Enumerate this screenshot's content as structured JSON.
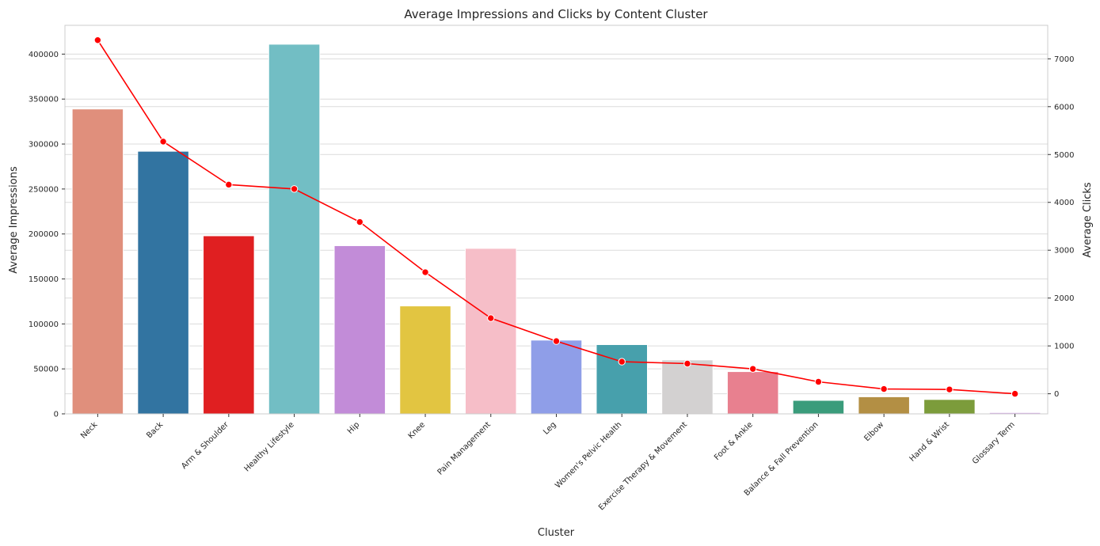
{
  "chart_data": {
    "type": "bar",
    "title": "Average Impressions and Clicks by Content Cluster",
    "xlabel": "Cluster",
    "ylabel": "Average Impressions",
    "y2label": "Average Clicks",
    "ylim": [
      0,
      432000
    ],
    "y2lim": [
      -420,
      7700
    ],
    "yticks": [
      0,
      50000,
      100000,
      150000,
      200000,
      250000,
      300000,
      350000,
      400000
    ],
    "y2ticks": [
      0,
      1000,
      2000,
      3000,
      4000,
      5000,
      6000,
      7000
    ],
    "grid": true,
    "legend": "none",
    "categories": [
      "Neck",
      "Back",
      "Arm & Shoulder",
      "Healthy Lifestyle",
      "Hip",
      "Knee",
      "Pain Management",
      "Leg",
      "Women's Pelvic Health",
      "Exercise Therapy & Movement",
      "Foot & Ankle",
      "Balance & Fall Prevention",
      "Elbow",
      "Hand & Wrist",
      "Glossary Term"
    ],
    "series": [
      {
        "type": "bar",
        "axis": "left",
        "values": [
          339000,
          292000,
          198000,
          411000,
          187000,
          120000,
          184000,
          82000,
          77000,
          60000,
          47000,
          15000,
          19000,
          16000,
          1500
        ],
        "colors": [
          "#e08f7c",
          "#3274a1",
          "#e01f21",
          "#72bec4",
          "#c28cd8",
          "#e2c541",
          "#f6bec8",
          "#8f9ee8",
          "#47a0ac",
          "#d3d1d1",
          "#e8808f",
          "#3a9c7b",
          "#b38f44",
          "#7c9c3b",
          "#d6a8e8"
        ]
      },
      {
        "type": "line",
        "axis": "right",
        "color": "#ff0000",
        "values": [
          7390,
          5270,
          4370,
          4280,
          3590,
          2540,
          1580,
          1100,
          670,
          630,
          520,
          250,
          100,
          90,
          0
        ]
      }
    ]
  }
}
